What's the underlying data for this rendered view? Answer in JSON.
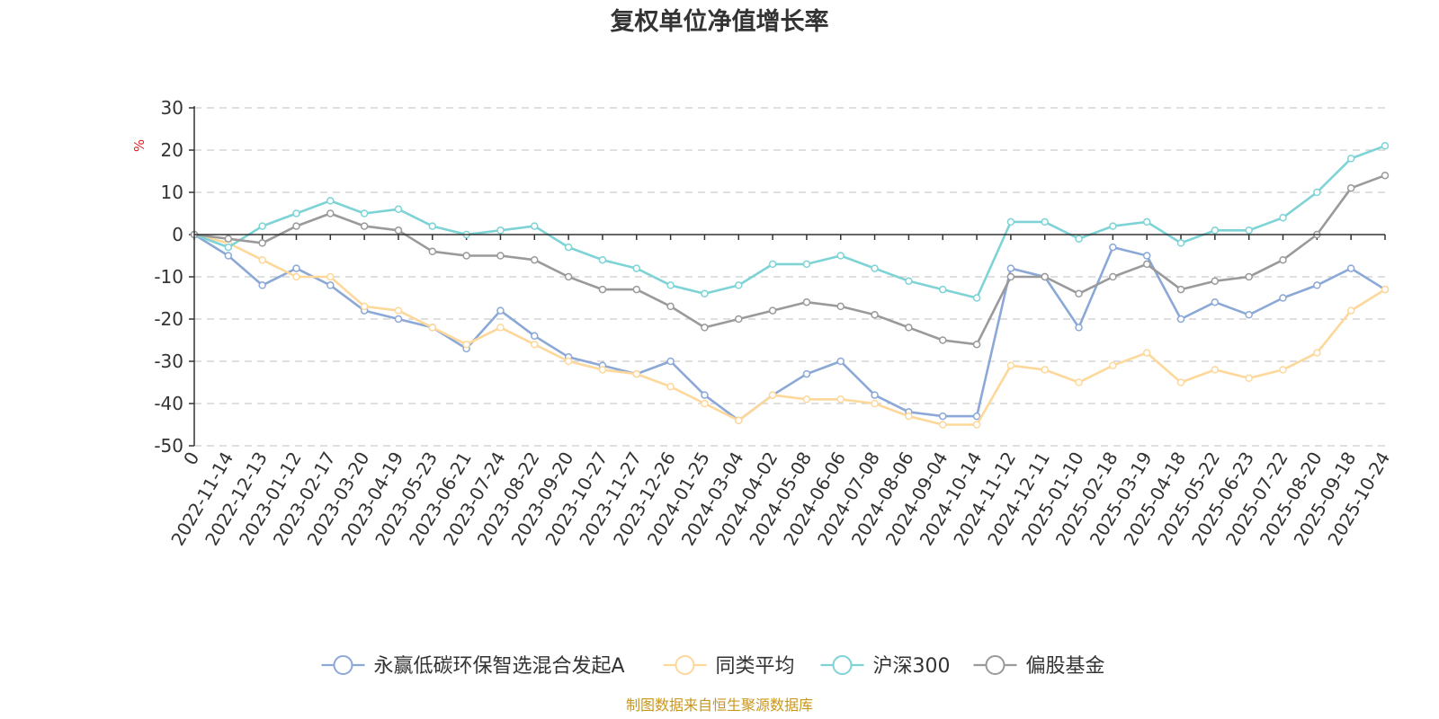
{
  "chart_data": {
    "type": "line",
    "title": "复权单位净值增长率",
    "ylabel": "%",
    "ylim": [
      -50,
      30
    ],
    "yticks": [
      30,
      20,
      10,
      0,
      -10,
      -20,
      -30,
      -40,
      -50
    ],
    "grid": true,
    "legend_position": "bottom",
    "source": "制图数据来自恒生聚源数据库",
    "x": [
      "0",
      "2022-11-14",
      "2022-12-13",
      "2023-01-12",
      "2023-02-17",
      "2023-03-20",
      "2023-04-19",
      "2023-05-23",
      "2023-06-21",
      "2023-07-24",
      "2023-08-22",
      "2023-09-20",
      "2023-10-27",
      "2023-11-27",
      "2023-12-26",
      "2024-01-25",
      "2024-03-04",
      "2024-04-02",
      "2024-05-08",
      "2024-06-06",
      "2024-07-08",
      "2024-08-06",
      "2024-09-04",
      "2024-10-14",
      "2024-11-12",
      "2024-12-11",
      "2025-01-10",
      "2025-02-18",
      "2025-03-19",
      "2025-04-18",
      "2025-05-22",
      "2025-06-23",
      "2025-07-22",
      "2025-08-20",
      "2025-09-18",
      "2025-10-24"
    ],
    "series": [
      {
        "name": "永赢低碳环保智选混合发起A",
        "color": "#8ba8d6",
        "values": [
          0,
          -5,
          -12,
          -8,
          -12,
          -18,
          -20,
          -22,
          -27,
          -18,
          -24,
          -29,
          -31,
          -33,
          -30,
          -38,
          -44,
          -38,
          -33,
          -30,
          -38,
          -42,
          -43,
          -43,
          -8,
          -10,
          -22,
          -3,
          -5,
          -20,
          -16,
          -19,
          -15,
          -12,
          -8,
          -13
        ]
      },
      {
        "name": "同类平均",
        "color": "#fdd89a",
        "values": [
          0,
          -2,
          -6,
          -10,
          -10,
          -17,
          -18,
          -22,
          -26,
          -22,
          -26,
          -30,
          -32,
          -33,
          -36,
          -40,
          -44,
          -38,
          -39,
          -39,
          -40,
          -43,
          -45,
          -45,
          -31,
          -32,
          -35,
          -31,
          -28,
          -35,
          -32,
          -34,
          -32,
          -28,
          -18,
          -13
        ]
      },
      {
        "name": "沪深300",
        "color": "#7dd3d6",
        "values": [
          0,
          -3,
          2,
          5,
          8,
          5,
          6,
          2,
          0,
          1,
          2,
          -3,
          -6,
          -8,
          -12,
          -14,
          -12,
          -7,
          -7,
          -5,
          -8,
          -11,
          -13,
          -15,
          3,
          3,
          -1,
          2,
          3,
          -2,
          1,
          1,
          4,
          10,
          18,
          21
        ]
      },
      {
        "name": "偏股基金",
        "color": "#9a9a9a",
        "values": [
          0,
          -1,
          -2,
          2,
          5,
          2,
          1,
          -4,
          -5,
          -5,
          -6,
          -10,
          -13,
          -13,
          -17,
          -22,
          -20,
          -18,
          -16,
          -17,
          -19,
          -22,
          -25,
          -26,
          -10,
          -10,
          -14,
          -10,
          -7,
          -13,
          -11,
          -10,
          -6,
          0,
          11,
          14
        ]
      }
    ]
  }
}
